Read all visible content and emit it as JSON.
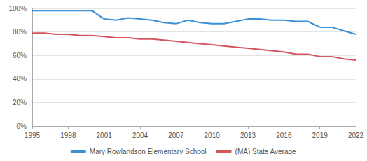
{
  "chart_data": {
    "type": "line",
    "x": [
      1995,
      1996,
      1997,
      1998,
      1999,
      2000,
      2001,
      2002,
      2003,
      2004,
      2005,
      2006,
      2007,
      2008,
      2009,
      2010,
      2011,
      2012,
      2013,
      2014,
      2015,
      2016,
      2017,
      2018,
      2019,
      2020,
      2021,
      2022
    ],
    "series": [
      {
        "name": "Mary Rowlandson Elementary School",
        "color": "#3b8fd5",
        "values": [
          98,
          98,
          98,
          98,
          98,
          98,
          91,
          90,
          92,
          91,
          90,
          88,
          87,
          90,
          88,
          87,
          87,
          89,
          91,
          91,
          90,
          90,
          89,
          89,
          84,
          84,
          81,
          78
        ]
      },
      {
        "name": "(MA) State Average",
        "color": "#d5555c",
        "values": [
          79,
          79,
          78,
          78,
          77,
          77,
          76,
          75,
          75,
          74,
          74,
          73,
          72,
          71,
          70,
          69,
          68,
          67,
          66,
          65,
          64,
          63,
          61,
          61,
          59,
          59,
          57,
          56
        ]
      }
    ],
    "xlim": [
      1995,
      2022
    ],
    "xticks": [
      1995,
      1998,
      2001,
      2004,
      2007,
      2010,
      2013,
      2016,
      2019,
      2022
    ],
    "ylim": [
      0,
      100
    ],
    "yticks": [
      {
        "value": 0,
        "label": "0%"
      },
      {
        "value": 20,
        "label": "20%"
      },
      {
        "value": 40,
        "label": "40%"
      },
      {
        "value": 60,
        "label": "60%"
      },
      {
        "value": 80,
        "label": "80%"
      },
      {
        "value": 100,
        "label": "100%"
      }
    ],
    "grid": true,
    "legend": "bottom",
    "marker": "none",
    "line_style": "solid"
  }
}
